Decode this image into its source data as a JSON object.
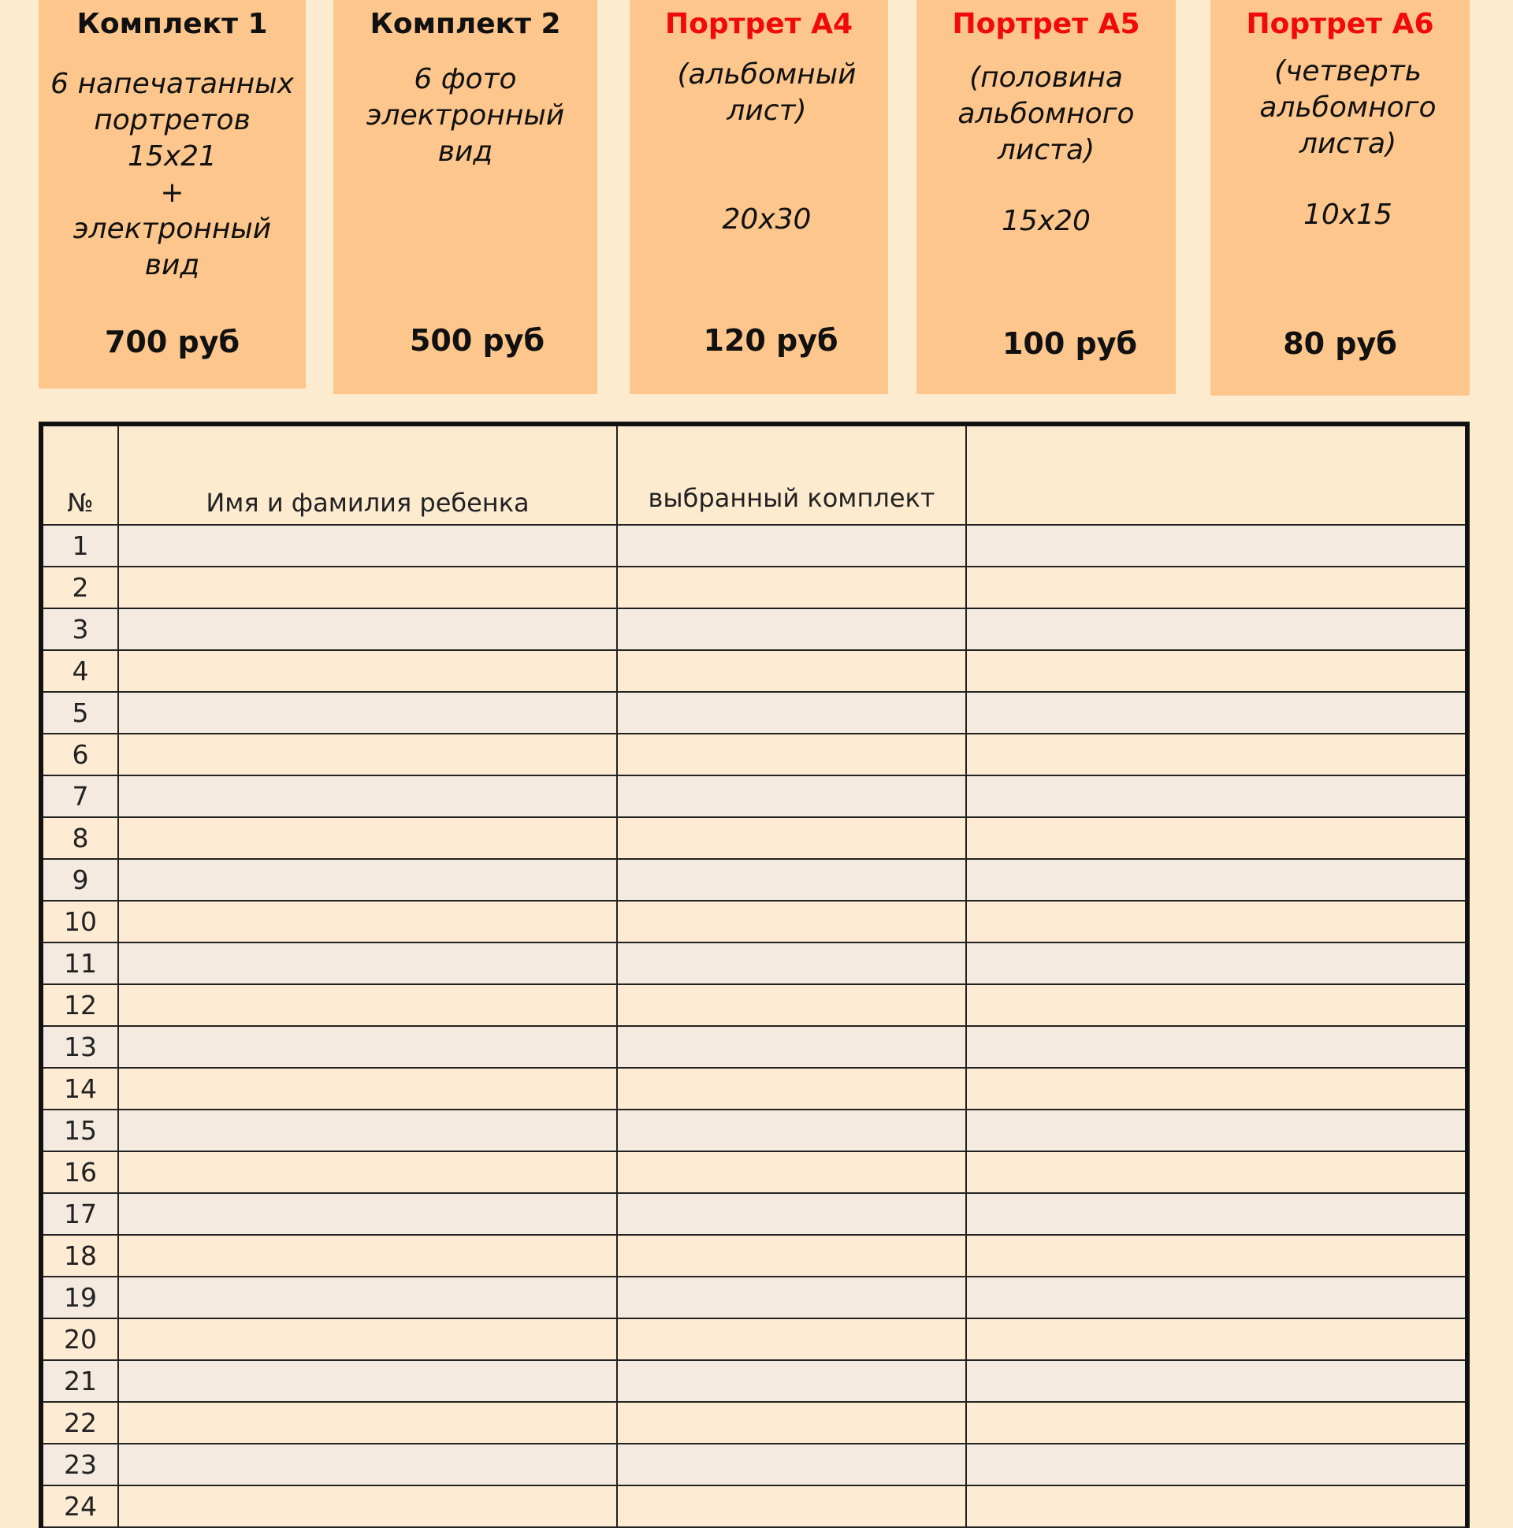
{
  "offers": [
    {
      "title": "Комплект 1",
      "desc": "6 напечатанных\nпортретов\n15х21\n+\nэлектронный\nвид",
      "size": "",
      "price": "700 руб",
      "title_color": "#111111"
    },
    {
      "title": "Комплект 2",
      "desc": "6 фото\nэлектронный\nвид",
      "size": "",
      "price": "500 руб",
      "title_color": "#111111"
    },
    {
      "title": "Портрет А4",
      "desc": "(альбомный\nлист)",
      "size": "20х30",
      "price": "120 руб",
      "title_color": "#f00a0a"
    },
    {
      "title": "Портрет А5",
      "desc": "(половина\nальбомного\nлиста)",
      "size": "15х20",
      "price": "100 руб",
      "title_color": "#f00a0a"
    },
    {
      "title": "Портрет А6",
      "desc": "(четверть\nальбомного\nлиста)",
      "size": "10х15",
      "price": "80 руб",
      "title_color": "#f00a0a"
    }
  ],
  "table": {
    "headers": [
      "№",
      "Имя и фамилия ребенка",
      "выбранный комплект",
      ""
    ],
    "rows": [
      "1",
      "2",
      "3",
      "4",
      "5",
      "6",
      "7",
      "8",
      "9",
      "10",
      "11",
      "12",
      "13",
      "14",
      "15",
      "16",
      "17",
      "18",
      "19",
      "20",
      "21",
      "22",
      "23",
      "24"
    ]
  },
  "colors": {
    "background": "#fdebd0",
    "box": "#fdc68c",
    "accent_red": "#f00a0a"
  }
}
